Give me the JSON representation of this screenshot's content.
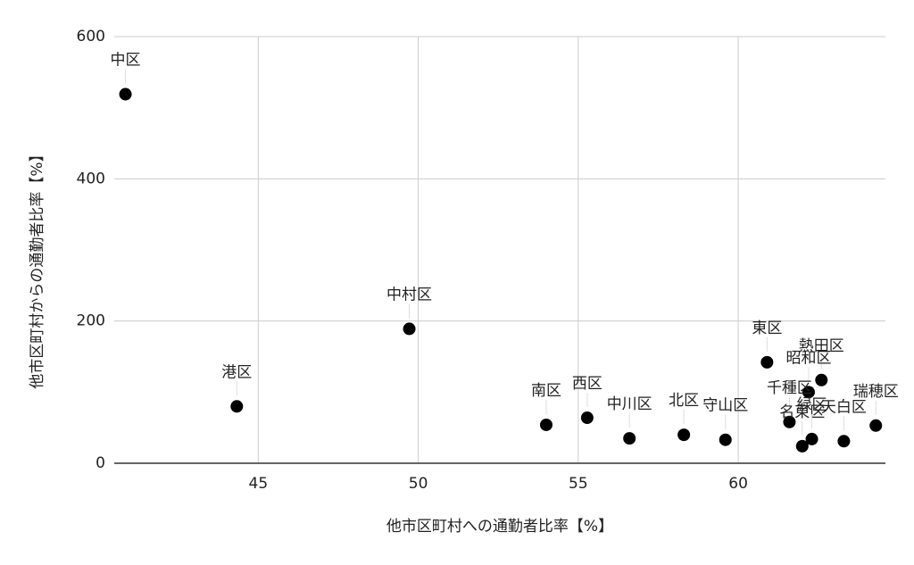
{
  "chart_data": {
    "type": "scatter",
    "x_label": "他市区町村への通勤者比率【%】",
    "y_label": "他市区町村からの通勤者比率【%】",
    "labels": [
      "中区",
      "港区",
      "中村区",
      "南区",
      "西区",
      "中川区",
      "北区",
      "守山区",
      "東区",
      "熱田区",
      "昭和区",
      "千種区",
      "名東区",
      "緑区",
      "天白区",
      "瑞穂区"
    ],
    "x": [
      40.85,
      44.33,
      49.72,
      54.0,
      55.28,
      56.6,
      58.3,
      59.6,
      60.9,
      62.6,
      62.2,
      61.6,
      62.0,
      62.3,
      63.3,
      64.3
    ],
    "values": [
      519,
      80,
      189,
      54,
      64,
      35,
      40,
      33,
      142,
      117,
      100,
      58,
      24,
      34,
      31,
      53
    ],
    "color": "#000000",
    "xlim": [
      40.5,
      64.6
    ],
    "xticks": [
      45,
      50,
      55,
      60
    ],
    "ylim": [
      0,
      600
    ],
    "yticks": [
      0,
      200,
      400,
      600
    ],
    "grid": true
  }
}
